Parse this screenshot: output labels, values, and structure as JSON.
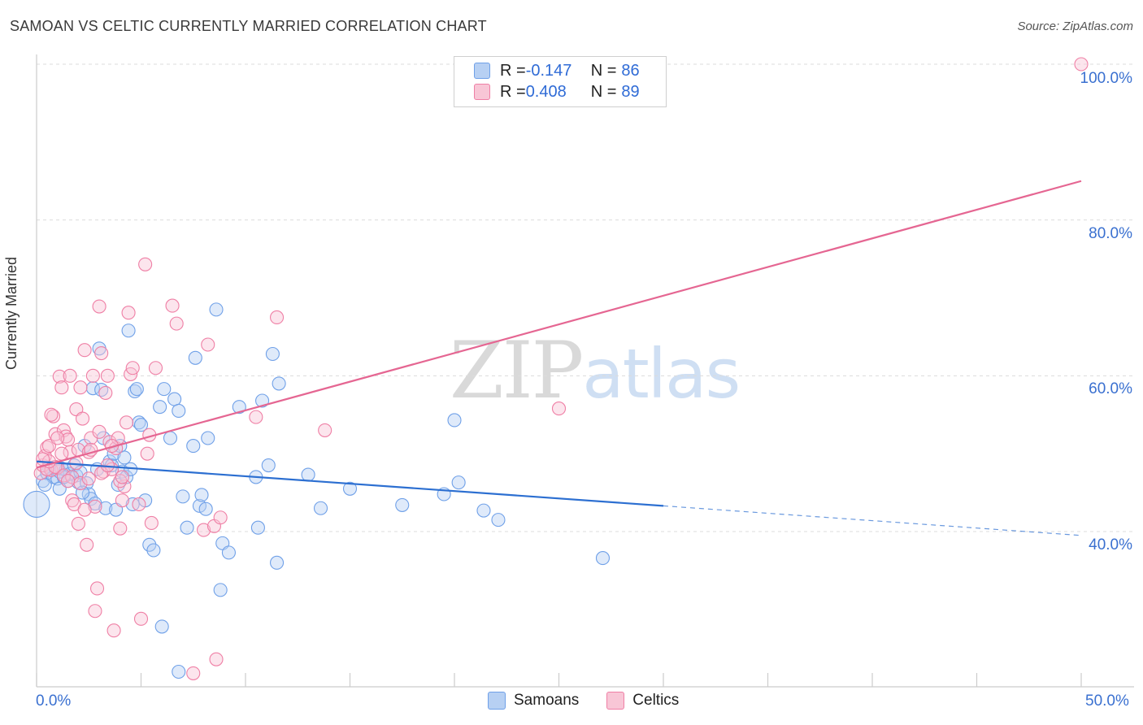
{
  "header": {
    "title": "SAMOAN VS CELTIC CURRENTLY MARRIED CORRELATION CHART",
    "source": "Source: ZipAtlas.com"
  },
  "watermark": {
    "zip": "ZIP",
    "atlas": "atlas"
  },
  "legend": {
    "r_label": "R = ",
    "n_label": "N = ",
    "series": [
      {
        "r": "-0.147",
        "n": "86",
        "color": "#6fa0e8",
        "fill": "#b7d0f3"
      },
      {
        "r": "0.408",
        "n": "89",
        "color": "#ef7fa5",
        "fill": "#f8c6d6"
      }
    ]
  },
  "bottom_legend": {
    "samoans": "Samoans",
    "celtics": "Celtics"
  },
  "axes": {
    "ylabel": "Currently Married",
    "y_ticks": [
      "100.0%",
      "80.0%",
      "60.0%",
      "40.0%"
    ],
    "x_ticks": [
      "0.0%",
      "50.0%"
    ]
  },
  "chart_data": {
    "type": "scatter",
    "title": "SAMOAN VS CELTIC CURRENTLY MARRIED CORRELATION CHART",
    "xlabel": "",
    "ylabel": "Currently Married",
    "xlim": [
      0,
      50
    ],
    "ylim": [
      20,
      101
    ],
    "y_tick_values": [
      40,
      60,
      80,
      100
    ],
    "x_tick_values": [
      0,
      50
    ],
    "series": [
      {
        "name": "Samoans",
        "color": "#3a7bd5",
        "points": [
          [
            0.3,
            46.5
          ],
          [
            0.5,
            47.5
          ],
          [
            0.6,
            48.2
          ],
          [
            0.8,
            47.0
          ],
          [
            0.9,
            48.0
          ],
          [
            1.0,
            46.8
          ],
          [
            1.1,
            47.7
          ],
          [
            1.2,
            48.1
          ],
          [
            1.4,
            47.9
          ],
          [
            1.5,
            46.5
          ],
          [
            1.6,
            47.4
          ],
          [
            1.8,
            48.5
          ],
          [
            1.9,
            47.2
          ],
          [
            2.0,
            46.3
          ],
          [
            2.1,
            47.6
          ],
          [
            2.3,
            51.0
          ],
          [
            2.4,
            46.2
          ],
          [
            2.5,
            44.8
          ],
          [
            2.6,
            44.2
          ],
          [
            2.7,
            58.4
          ],
          [
            2.8,
            43.6
          ],
          [
            2.9,
            48.0
          ],
          [
            3.0,
            63.5
          ],
          [
            3.1,
            58.2
          ],
          [
            3.2,
            52.0
          ],
          [
            3.3,
            43.0
          ],
          [
            3.5,
            49.0
          ],
          [
            3.6,
            48.5
          ],
          [
            3.7,
            50.0
          ],
          [
            3.8,
            42.8
          ],
          [
            3.9,
            46.0
          ],
          [
            4.0,
            51.0
          ],
          [
            4.1,
            47.7
          ],
          [
            4.2,
            49.5
          ],
          [
            4.3,
            47.0
          ],
          [
            4.4,
            65.8
          ],
          [
            4.5,
            48.0
          ],
          [
            4.7,
            58.0
          ],
          [
            4.8,
            58.3
          ],
          [
            4.9,
            54.0
          ],
          [
            5.0,
            53.7
          ],
          [
            5.2,
            44.0
          ],
          [
            5.4,
            38.3
          ],
          [
            5.6,
            37.6
          ],
          [
            5.9,
            56.0
          ],
          [
            6.0,
            27.8
          ],
          [
            6.1,
            58.3
          ],
          [
            6.4,
            52.0
          ],
          [
            6.6,
            57.0
          ],
          [
            6.8,
            55.5
          ],
          [
            7.0,
            44.5
          ],
          [
            7.2,
            40.5
          ],
          [
            7.5,
            51.0
          ],
          [
            7.6,
            62.3
          ],
          [
            7.8,
            43.3
          ],
          [
            7.9,
            44.7
          ],
          [
            8.1,
            42.9
          ],
          [
            8.2,
            52.0
          ],
          [
            8.6,
            68.5
          ],
          [
            8.8,
            32.5
          ],
          [
            8.9,
            38.5
          ],
          [
            9.2,
            37.3
          ],
          [
            9.7,
            56.0
          ],
          [
            10.5,
            47.0
          ],
          [
            10.6,
            40.5
          ],
          [
            10.8,
            56.8
          ],
          [
            11.1,
            48.5
          ],
          [
            11.3,
            62.8
          ],
          [
            11.6,
            59.0
          ],
          [
            11.5,
            36.0
          ],
          [
            13.0,
            47.3
          ],
          [
            13.6,
            43.0
          ],
          [
            15.0,
            45.5
          ],
          [
            17.5,
            43.4
          ],
          [
            19.5,
            44.8
          ],
          [
            20.0,
            54.3
          ],
          [
            20.2,
            46.3
          ],
          [
            21.4,
            42.7
          ],
          [
            22.1,
            41.5
          ],
          [
            27.1,
            36.6
          ],
          [
            6.8,
            22.0
          ],
          [
            1.1,
            45.5
          ],
          [
            2.2,
            45.0
          ],
          [
            4.6,
            43.5
          ],
          [
            0.4,
            46.0
          ],
          [
            1.3,
            47.0
          ]
        ]
      },
      {
        "name": "Celtics",
        "color": "#e56692",
        "points": [
          [
            0.2,
            47.5
          ],
          [
            0.3,
            48.5
          ],
          [
            0.4,
            49.7
          ],
          [
            0.5,
            50.8
          ],
          [
            0.6,
            51.0
          ],
          [
            0.7,
            47.9
          ],
          [
            0.8,
            54.8
          ],
          [
            0.9,
            52.5
          ],
          [
            1.0,
            48.2
          ],
          [
            1.1,
            59.9
          ],
          [
            1.2,
            58.5
          ],
          [
            1.3,
            53.0
          ],
          [
            1.4,
            52.2
          ],
          [
            1.5,
            51.8
          ],
          [
            1.6,
            50.2
          ],
          [
            1.7,
            44.0
          ],
          [
            1.8,
            43.5
          ],
          [
            1.9,
            55.7
          ],
          [
            2.0,
            50.5
          ],
          [
            2.1,
            58.5
          ],
          [
            2.2,
            54.5
          ],
          [
            2.3,
            63.3
          ],
          [
            2.4,
            38.3
          ],
          [
            2.5,
            50.2
          ],
          [
            2.6,
            52.0
          ],
          [
            2.7,
            60.0
          ],
          [
            2.8,
            43.2
          ],
          [
            2.9,
            32.7
          ],
          [
            3.0,
            68.9
          ],
          [
            3.1,
            62.9
          ],
          [
            3.2,
            47.7
          ],
          [
            3.3,
            57.8
          ],
          [
            3.4,
            60.0
          ],
          [
            3.5,
            51.5
          ],
          [
            3.6,
            48.0
          ],
          [
            3.7,
            27.3
          ],
          [
            3.8,
            50.7
          ],
          [
            3.9,
            52.0
          ],
          [
            4.0,
            40.4
          ],
          [
            4.1,
            44.0
          ],
          [
            4.2,
            45.8
          ],
          [
            4.3,
            54.0
          ],
          [
            4.4,
            68.1
          ],
          [
            4.5,
            60.2
          ],
          [
            4.6,
            61.0
          ],
          [
            4.9,
            43.5
          ],
          [
            5.0,
            28.8
          ],
          [
            5.2,
            74.3
          ],
          [
            5.3,
            50.0
          ],
          [
            5.4,
            52.4
          ],
          [
            5.5,
            41.1
          ],
          [
            5.7,
            61.0
          ],
          [
            6.5,
            69.0
          ],
          [
            6.7,
            66.7
          ],
          [
            7.5,
            21.8
          ],
          [
            8.0,
            40.2
          ],
          [
            8.2,
            64.0
          ],
          [
            8.5,
            40.7
          ],
          [
            8.6,
            23.6
          ],
          [
            8.8,
            41.8
          ],
          [
            10.5,
            54.7
          ],
          [
            11.5,
            67.5
          ],
          [
            13.8,
            53.0
          ],
          [
            25.0,
            55.8
          ],
          [
            50.0,
            100.0
          ],
          [
            0.5,
            48.0
          ],
          [
            0.9,
            48.3
          ],
          [
            1.3,
            47.2
          ],
          [
            1.7,
            47.0
          ],
          [
            2.1,
            46.2
          ],
          [
            2.5,
            46.8
          ],
          [
            3.1,
            47.5
          ],
          [
            3.6,
            51.0
          ],
          [
            4.0,
            46.5
          ],
          [
            0.6,
            49.0
          ],
          [
            1.0,
            52.0
          ],
          [
            1.9,
            48.8
          ],
          [
            2.6,
            50.5
          ],
          [
            3.0,
            52.8
          ],
          [
            1.5,
            46.5
          ],
          [
            2.3,
            42.8
          ],
          [
            3.4,
            48.5
          ],
          [
            0.7,
            55.0
          ],
          [
            1.2,
            50.0
          ],
          [
            2.8,
            29.8
          ],
          [
            4.1,
            47.0
          ],
          [
            2.0,
            41.0
          ],
          [
            1.6,
            60.0
          ],
          [
            0.3,
            49.3
          ]
        ]
      }
    ],
    "trendlines": [
      {
        "series": "Samoans",
        "from": [
          0,
          49.0
        ],
        "to": [
          30,
          43.3
        ],
        "dashed_to": [
          50,
          39.5
        ]
      },
      {
        "series": "Celtics",
        "from": [
          0,
          48.2
        ],
        "to": [
          50,
          85.0
        ]
      }
    ],
    "large_points": [
      {
        "series": "Samoans",
        "x": 0.0,
        "y": 43.5
      }
    ],
    "legend_position": "top-center",
    "grid": true
  }
}
